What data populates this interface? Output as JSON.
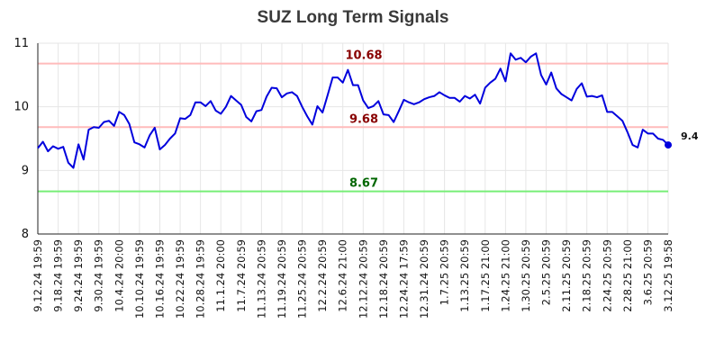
{
  "chart_data": {
    "type": "line",
    "title": "SUZ Long Term Signals",
    "xlabel": "",
    "ylabel": "",
    "ylim": [
      8,
      11
    ],
    "yticks": [
      "8",
      "9",
      "10",
      "11"
    ],
    "grid": true,
    "line_color": "#0000dd",
    "xtick_labels": [
      "9.12.24 19:59",
      "9.18.24 19:59",
      "9.24.24 19:59",
      "9.30.24 19:59",
      "10.4.24 20:00",
      "10.10.24 19:59",
      "10.16.24 19:59",
      "10.22.24 19:59",
      "10.28.24 19:59",
      "11.1.24 20:00",
      "11.7.24 20:59",
      "11.13.24 20:59",
      "11.19.24 20:59",
      "11.25.24 20:59",
      "12.2.24 20:59",
      "12.6.24 21:00",
      "12.12.24 20:59",
      "12.18.24 20:59",
      "12.24.24 17:59",
      "12.31.24 20:59",
      "1.7.25 20:59",
      "1.13.25 20:59",
      "1.17.25 21:00",
      "1.24.25 21:00",
      "1.30.25 20:59",
      "2.5.25 20:59",
      "2.11.25 20:59",
      "2.18.25 20:59",
      "2.24.25 20:59",
      "2.28.25 21:00",
      "3.6.25 20:59",
      "3.12.25 19:58"
    ],
    "reference_lines": [
      {
        "value": 10.68,
        "label": "10.68",
        "line_color": "#ffbbbb",
        "label_color": "#880000"
      },
      {
        "value": 9.68,
        "label": "9.68",
        "line_color": "#ffbbbb",
        "label_color": "#880000"
      },
      {
        "value": 8.67,
        "label": "8.67",
        "line_color": "#77ee77",
        "label_color": "#006600"
      }
    ],
    "last_value_label": "9.4",
    "values": [
      9.35,
      9.45,
      9.3,
      9.38,
      9.34,
      9.37,
      9.12,
      9.04,
      9.41,
      9.17,
      9.64,
      9.68,
      9.67,
      9.76,
      9.78,
      9.7,
      9.92,
      9.87,
      9.73,
      9.44,
      9.41,
      9.36,
      9.55,
      9.67,
      9.33,
      9.4,
      9.5,
      9.58,
      9.82,
      9.81,
      9.87,
      10.07,
      10.07,
      10.01,
      10.09,
      9.94,
      9.89,
      10.0,
      10.17,
      10.1,
      10.03,
      9.84,
      9.77,
      9.93,
      9.95,
      10.16,
      10.3,
      10.29,
      10.15,
      10.21,
      10.23,
      10.17,
      10.0,
      9.85,
      9.72,
      10.01,
      9.91,
      10.18,
      10.46,
      10.46,
      10.38,
      10.58,
      10.34,
      10.34,
      10.1,
      9.98,
      10.01,
      10.09,
      9.88,
      9.87,
      9.76,
      9.93,
      10.11,
      10.07,
      10.04,
      10.07,
      10.12,
      10.15,
      10.17,
      10.23,
      10.18,
      10.14,
      10.14,
      10.08,
      10.17,
      10.13,
      10.19,
      10.05,
      10.3,
      10.38,
      10.44,
      10.6,
      10.4,
      10.84,
      10.74,
      10.77,
      10.7,
      10.79,
      10.84,
      10.5,
      10.35,
      10.54,
      10.29,
      10.2,
      10.15,
      10.1,
      10.28,
      10.37,
      10.16,
      10.17,
      10.15,
      10.18,
      9.92,
      9.92,
      9.85,
      9.78,
      9.6,
      9.4,
      9.36,
      9.64,
      9.58,
      9.58,
      9.5,
      9.48,
      9.4
    ]
  }
}
